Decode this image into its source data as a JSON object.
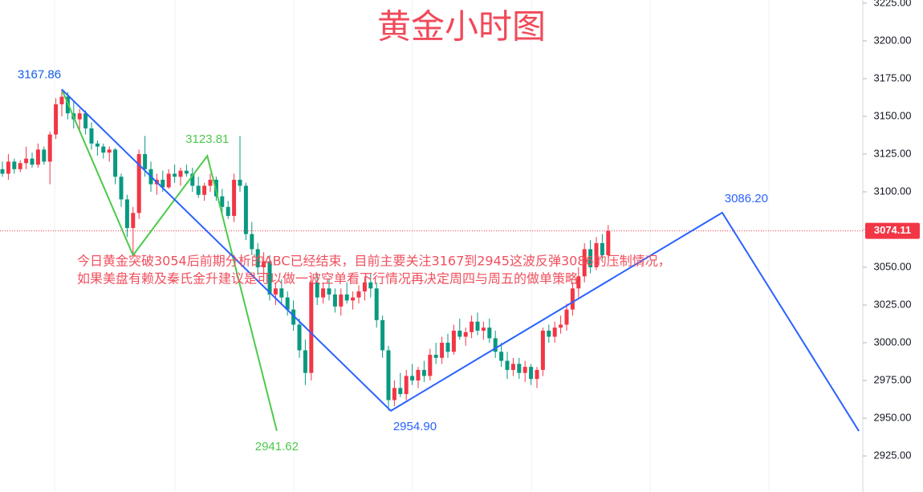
{
  "chart_data": {
    "type": "candlestick",
    "title": "黄金小时图",
    "annotation_lines": [
      "今日黄金突破3054后前期分析的ABC已经结束，目前主要关注3167到2945这波反弹3086的压制情况，",
      "如果美盘有赖及秦氏金升建议是可以做一波空单看下行情况再决定周四与周五的做单策略"
    ],
    "up_color": "#f23645",
    "down_color": "#089981",
    "ylim": [
      2901.1,
      3227.1
    ],
    "yticks": [
      {
        "value": 3225,
        "label": "3225.00"
      },
      {
        "value": 3200,
        "label": "3200.00"
      },
      {
        "value": 3175,
        "label": "3175.00"
      },
      {
        "value": 3150,
        "label": "3150.00"
      },
      {
        "value": 3125,
        "label": "3125.00"
      },
      {
        "value": 3100,
        "label": "3100.00"
      },
      {
        "value": 3075,
        "label": "3075.00"
      },
      {
        "value": 3050,
        "label": "3050.00"
      },
      {
        "value": 3025,
        "label": "3025.00"
      },
      {
        "value": 3000,
        "label": "3000.00"
      },
      {
        "value": 2975,
        "label": "2975.00"
      },
      {
        "value": 2950,
        "label": "2950.00"
      },
      {
        "value": 2925,
        "label": "2925.00"
      }
    ],
    "last_price": 3074.11,
    "last_price_color": "#f23645",
    "candles": [
      [
        3115,
        3120,
        3110,
        3112
      ],
      [
        3112,
        3125,
        3108,
        3120
      ],
      [
        3120,
        3122,
        3112,
        3115
      ],
      [
        3115,
        3121,
        3113,
        3119
      ],
      [
        3119,
        3130,
        3115,
        3122
      ],
      [
        3122,
        3126,
        3116,
        3118
      ],
      [
        3118,
        3132,
        3116,
        3128
      ],
      [
        3128,
        3130,
        3118,
        3120
      ],
      [
        3120,
        3140,
        3105,
        3138
      ],
      [
        3138,
        3162,
        3135,
        3158
      ],
      [
        3158,
        3168,
        3150,
        3163
      ],
      [
        3163,
        3166,
        3148,
        3152
      ],
      [
        3152,
        3160,
        3142,
        3148
      ],
      [
        3148,
        3155,
        3140,
        3152
      ],
      [
        3152,
        3154,
        3138,
        3142
      ],
      [
        3142,
        3146,
        3128,
        3132
      ],
      [
        3132,
        3134,
        3124,
        3130
      ],
      [
        3130,
        3132,
        3122,
        3126
      ],
      [
        3126,
        3130,
        3120,
        3128
      ],
      [
        3128,
        3129,
        3105,
        3110
      ],
      [
        3110,
        3112,
        3090,
        3095
      ],
      [
        3095,
        3098,
        3070,
        3076
      ],
      [
        3076,
        3090,
        3058,
        3086
      ],
      [
        3086,
        3128,
        3082,
        3125
      ],
      [
        3125,
        3137,
        3110,
        3115
      ],
      [
        3115,
        3120,
        3100,
        3105
      ],
      [
        3105,
        3112,
        3098,
        3108
      ],
      [
        3108,
        3114,
        3100,
        3103
      ],
      [
        3103,
        3115,
        3102,
        3112
      ],
      [
        3112,
        3118,
        3106,
        3110
      ],
      [
        3110,
        3116,
        3104,
        3114
      ],
      [
        3114,
        3118,
        3110,
        3112
      ],
      [
        3112,
        3116,
        3100,
        3104
      ],
      [
        3104,
        3110,
        3096,
        3098
      ],
      [
        3098,
        3106,
        3094,
        3104
      ],
      [
        3104,
        3112,
        3100,
        3108
      ],
      [
        3108,
        3110,
        3094,
        3097
      ],
      [
        3097,
        3102,
        3086,
        3090
      ],
      [
        3090,
        3094,
        3082,
        3084
      ],
      [
        3084,
        3112,
        3080,
        3108
      ],
      [
        3108,
        3137,
        3100,
        3104
      ],
      [
        3104,
        3106,
        3068,
        3072
      ],
      [
        3072,
        3080,
        3058,
        3062
      ],
      [
        3062,
        3066,
        3045,
        3050
      ],
      [
        3050,
        3060,
        3040,
        3054
      ],
      [
        3054,
        3058,
        3028,
        3032
      ],
      [
        3032,
        3040,
        3025,
        3036
      ],
      [
        3036,
        3042,
        3026,
        3030
      ],
      [
        3030,
        3034,
        3018,
        3022
      ],
      [
        3022,
        3028,
        3008,
        3012
      ],
      [
        3012,
        3016,
        2990,
        2995
      ],
      [
        2995,
        3002,
        2972,
        2980
      ],
      [
        2980,
        3045,
        2975,
        3040
      ],
      [
        3040,
        3046,
        3025,
        3030
      ],
      [
        3030,
        3040,
        3026,
        3036
      ],
      [
        3036,
        3042,
        3028,
        3032
      ],
      [
        3032,
        3036,
        3020,
        3024
      ],
      [
        3024,
        3036,
        3018,
        3032
      ],
      [
        3032,
        3040,
        3026,
        3028
      ],
      [
        3028,
        3034,
        3022,
        3030
      ],
      [
        3030,
        3038,
        3026,
        3034
      ],
      [
        3034,
        3044,
        3028,
        3040
      ],
      [
        3040,
        3046,
        3030,
        3036
      ],
      [
        3036,
        3040,
        3010,
        3015
      ],
      [
        3015,
        3018,
        2990,
        2995
      ],
      [
        2995,
        2998,
        2955,
        2962
      ],
      [
        2962,
        2975,
        2958,
        2970
      ],
      [
        2970,
        2980,
        2964,
        2966
      ],
      [
        2966,
        2982,
        2962,
        2978
      ],
      [
        2978,
        2986,
        2972,
        2975
      ],
      [
        2975,
        2984,
        2970,
        2982
      ],
      [
        2982,
        2988,
        2974,
        2978
      ],
      [
        2978,
        2996,
        2975,
        2992
      ],
      [
        2992,
        3000,
        2986,
        2990
      ],
      [
        2990,
        3004,
        2986,
        3000
      ],
      [
        3000,
        3006,
        2990,
        2994
      ],
      [
        2994,
        3012,
        2992,
        3008
      ],
      [
        3008,
        3016,
        3002,
        3004
      ],
      [
        3004,
        3010,
        2998,
        3007
      ],
      [
        3007,
        3018,
        3003,
        3014
      ],
      [
        3014,
        3020,
        3005,
        3008
      ],
      [
        3008,
        3014,
        3002,
        3010
      ],
      [
        3010,
        3016,
        3000,
        3003
      ],
      [
        3003,
        3008,
        2990,
        2994
      ],
      [
        2994,
        3000,
        2984,
        2988
      ],
      [
        2988,
        2994,
        2976,
        2982
      ],
      [
        2982,
        2990,
        2978,
        2986
      ],
      [
        2986,
        2990,
        2976,
        2980
      ],
      [
        2980,
        2988,
        2974,
        2984
      ],
      [
        2984,
        2986,
        2972,
        2976
      ],
      [
        2976,
        2984,
        2970,
        2982
      ],
      [
        2982,
        3010,
        2978,
        3008
      ],
      [
        3008,
        3012,
        3000,
        3004
      ],
      [
        3004,
        3014,
        3000,
        3010
      ],
      [
        3010,
        3018,
        3006,
        3012
      ],
      [
        3012,
        3026,
        3008,
        3022
      ],
      [
        3022,
        3040,
        3018,
        3036
      ],
      [
        3036,
        3050,
        3030,
        3044
      ],
      [
        3044,
        3066,
        3040,
        3062
      ],
      [
        3062,
        3068,
        3046,
        3050
      ],
      [
        3050,
        3070,
        3048,
        3066
      ],
      [
        3066,
        3072,
        3055,
        3058
      ],
      [
        3058,
        3078,
        3056,
        3074.11
      ]
    ],
    "waves": [
      {
        "color": "#4cc94c",
        "x": [
          10,
          22,
          34.5,
          46.2
        ],
        "values": [
          3167.86,
          3058,
          3123.81,
          2941.62
        ],
        "labels": [
          "3167.86",
          null,
          "3123.81",
          "2941.62"
        ]
      },
      {
        "color": "#2962ff",
        "x": [
          10,
          65.4,
          121.2,
          144.2
        ],
        "values": [
          3167.86,
          2954.9,
          3086.2,
          2941.5
        ],
        "labels": [
          "3167.86",
          "2954.90",
          "3086.20",
          null
        ]
      }
    ]
  }
}
